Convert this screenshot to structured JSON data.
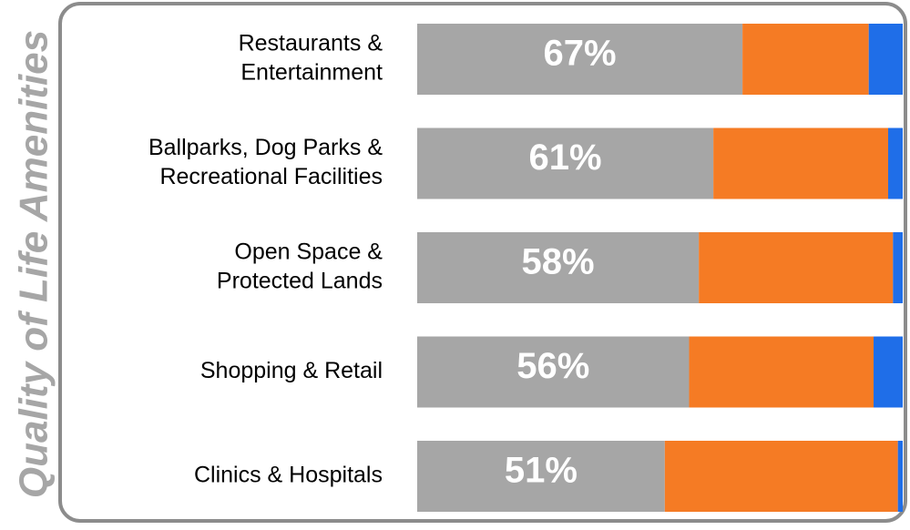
{
  "chart_data": {
    "type": "stacked-bar-horizontal",
    "side_title": "Quality of Life Amenities",
    "categories": [
      [
        "Restaurants &",
        "Entertainment"
      ],
      [
        "Ballparks, Dog Parks &",
        "Recreational Facilities"
      ],
      [
        "Open Space &",
        "Protected Lands"
      ],
      [
        "Shopping & Retail"
      ],
      [
        "Clinics & Hospitals"
      ]
    ],
    "series": [
      {
        "color": "#a6a6a6",
        "values": [
          67,
          61,
          58,
          56,
          51
        ],
        "value_labels": [
          "67%",
          "61%",
          "58%",
          "56%",
          "51%"
        ]
      },
      {
        "color": "#f57b24",
        "values": [
          26,
          36,
          40,
          38,
          48
        ]
      },
      {
        "color": "#1f6ee8",
        "values": [
          7,
          3,
          2,
          6,
          1
        ]
      }
    ],
    "xlim": [
      0,
      100
    ]
  }
}
